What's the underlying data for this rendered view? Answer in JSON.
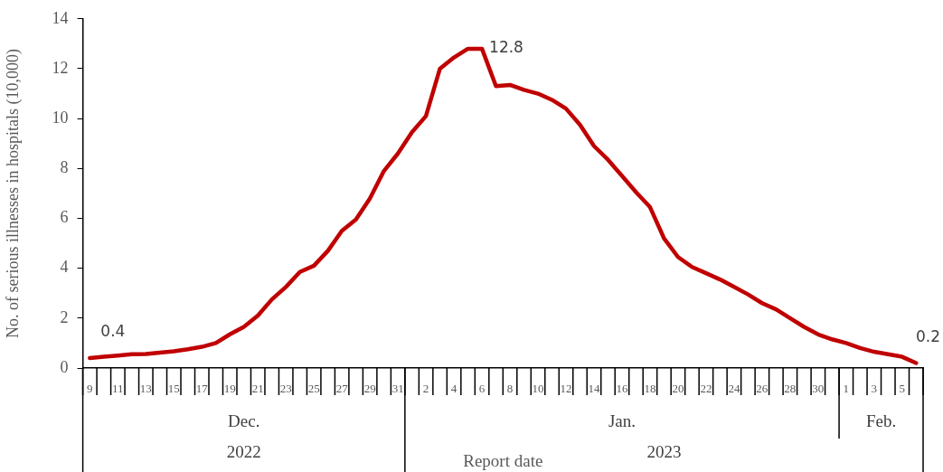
{
  "chart_data": {
    "type": "line",
    "ylabel": "No. of serious illnesses in hospitals (10,000)",
    "xlabel": "Report date",
    "categories": [
      "9",
      null,
      "11",
      null,
      "13",
      null,
      "15",
      null,
      "17",
      null,
      "19",
      null,
      "21",
      null,
      "23",
      null,
      "25",
      null,
      "27",
      null,
      "29",
      null,
      "31",
      null,
      "2",
      null,
      "4",
      null,
      "6",
      null,
      "8",
      null,
      "10",
      null,
      "12",
      null,
      "14",
      null,
      "16",
      null,
      "18",
      null,
      "20",
      null,
      "22",
      null,
      "24",
      null,
      "26",
      null,
      "28",
      null,
      "30",
      null,
      "1",
      null,
      "3",
      null,
      "5",
      null
    ],
    "series": [
      {
        "color": "#c00000",
        "values": [
          0.4,
          0.45,
          0.5,
          0.55,
          0.56,
          0.62,
          0.67,
          0.75,
          0.85,
          1.0,
          1.35,
          1.65,
          2.1,
          2.75,
          3.25,
          3.85,
          4.1,
          4.7,
          5.5,
          5.95,
          6.8,
          7.9,
          8.6,
          9.45,
          10.1,
          12.0,
          12.45,
          12.8,
          12.8,
          11.3,
          11.35,
          11.15,
          11.0,
          10.75,
          10.4,
          9.75,
          8.9,
          8.35,
          7.7,
          7.05,
          6.45,
          5.2,
          4.45,
          4.05,
          3.8,
          3.55,
          3.25,
          2.95,
          2.6,
          2.35,
          2.0,
          1.65,
          1.35,
          1.15,
          1.0,
          0.8,
          0.65,
          0.55,
          0.45,
          0.2
        ],
        "value_labels": [
          "0.4",
          null,
          null,
          null,
          null,
          null,
          null,
          null,
          null,
          null,
          null,
          null,
          null,
          null,
          null,
          null,
          null,
          null,
          null,
          null,
          null,
          null,
          null,
          null,
          null,
          null,
          null,
          null,
          "12.8",
          null,
          null,
          null,
          null,
          null,
          null,
          null,
          null,
          null,
          null,
          null,
          null,
          null,
          null,
          null,
          null,
          null,
          null,
          null,
          null,
          null,
          null,
          null,
          null,
          null,
          null,
          null,
          null,
          null,
          null,
          "0.2"
        ]
      }
    ],
    "ylim": [
      0,
      14
    ],
    "yticks": [
      0,
      2,
      4,
      6,
      8,
      10,
      12,
      14
    ],
    "grid": false,
    "legend": false,
    "marker": "none",
    "line_style": "solid",
    "annotations": [
      "Dec.",
      "Jan.",
      "Feb.",
      "2022",
      "2023"
    ]
  }
}
